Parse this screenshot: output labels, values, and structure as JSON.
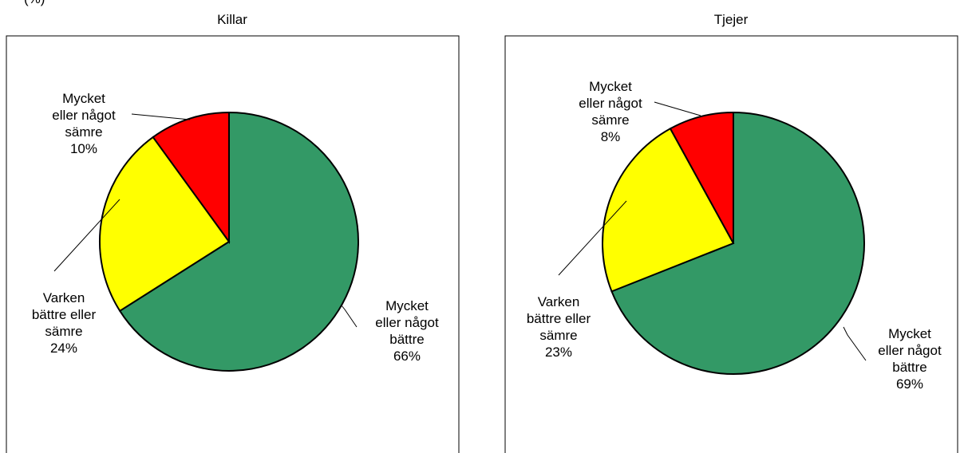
{
  "caption": "(%)",
  "chart_data": [
    {
      "type": "pie",
      "title": "Killar",
      "categories": [
        "Mycket\neller något\nbättre",
        "Varken\nbättre eller\nsämre",
        "Mycket\neller något\nsämre"
      ],
      "values": [
        66,
        24,
        10
      ],
      "value_labels": [
        "66%",
        "24%",
        "10%"
      ],
      "colors": [
        "#339966",
        "#ffff00",
        "#ff0000"
      ]
    },
    {
      "type": "pie",
      "title": "Tjejer",
      "categories": [
        "Mycket\neller något\nbättre",
        "Varken\nbättre eller\nsämre",
        "Mycket\neller något\nsämre"
      ],
      "values": [
        69,
        23,
        8
      ],
      "value_labels": [
        "69%",
        "23%",
        "8%"
      ],
      "colors": [
        "#339966",
        "#ffff00",
        "#ff0000"
      ]
    }
  ]
}
